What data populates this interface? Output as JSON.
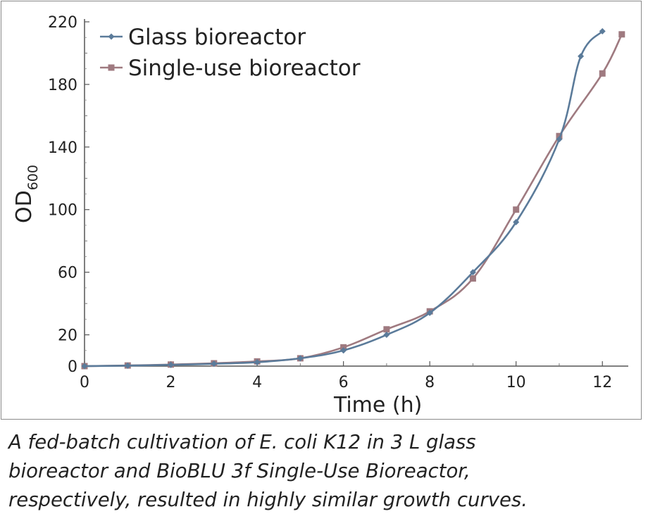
{
  "chart_data": {
    "type": "line",
    "title": "",
    "xlabel": "Time (h)",
    "ylabel": "OD",
    "ylabel_subscript": "600",
    "xlim": [
      0,
      12.6
    ],
    "ylim": [
      0,
      220
    ],
    "x_ticks": [
      0,
      2,
      4,
      6,
      8,
      10,
      12
    ],
    "y_ticks": [
      0,
      20,
      60,
      100,
      140,
      180,
      220
    ],
    "y_minor_ticks": [
      40,
      80,
      120,
      160,
      200
    ],
    "grid": false,
    "legend_position": "top-left",
    "series": [
      {
        "name": "Glass bioreactor",
        "color": "#5b7b9a",
        "marker": "diamond",
        "x": [
          0,
          1,
          2,
          3,
          4,
          5,
          6,
          7,
          8,
          9,
          10,
          11,
          11.5,
          12
        ],
        "y": [
          0,
          0.3,
          0.8,
          1.5,
          2.5,
          5,
          10,
          20,
          34,
          60,
          92,
          145,
          198,
          214
        ]
      },
      {
        "name": "Single-use bioreactor",
        "color": "#9f7a80",
        "marker": "square",
        "x": [
          0,
          1,
          2,
          3,
          4,
          5,
          6,
          7,
          8,
          9,
          10,
          11,
          12,
          12.45
        ],
        "y": [
          0,
          0.4,
          1,
          1.8,
          3,
          5,
          12,
          23.5,
          35,
          56,
          100,
          147,
          187,
          212
        ]
      }
    ]
  },
  "caption": {
    "line1": "A fed-batch cultivation of E. coli K12 in 3 L glass",
    "line2": "bioreactor and BioBLU 3f Single-Use Bioreactor,",
    "line3": "respectively, resulted in highly similar growth curves."
  }
}
